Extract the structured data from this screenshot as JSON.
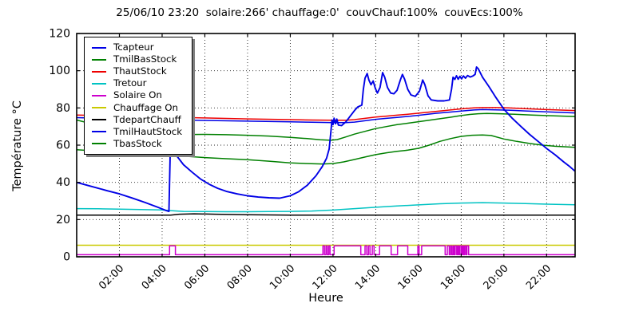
{
  "chart_data": {
    "type": "line",
    "title": "25/06/10 23:20  solaire:266' chauffage:0'  couvChauf:100%  couvEcs:100%",
    "xlabel": "Heure",
    "ylabel": "Température °C",
    "xlim_hours": [
      0,
      23.333
    ],
    "ylim": [
      0,
      120
    ],
    "ytick_values": [
      0,
      20,
      40,
      60,
      80,
      100,
      120
    ],
    "ytick_labels": [
      "0",
      "20",
      "40",
      "60",
      "80",
      "100",
      "120"
    ],
    "xtick_hours": [
      2,
      4,
      6,
      8,
      10,
      12,
      14,
      16,
      18,
      20,
      22
    ],
    "xtick_labels": [
      "02:00",
      "04:00",
      "06:00",
      "08:00",
      "10:00",
      "12:00",
      "14:00",
      "16:00",
      "18:00",
      "20:00",
      "22:00"
    ],
    "grid": true,
    "grid_style": "dotted",
    "legend_position": "upper-left",
    "series": [
      {
        "name": "Tcapteur",
        "color": "#0000e6",
        "points": [
          [
            0,
            40
          ],
          [
            0.7,
            37.8
          ],
          [
            1.4,
            35.6
          ],
          [
            2,
            33.8
          ],
          [
            2.6,
            31.6
          ],
          [
            3.2,
            29.2
          ],
          [
            3.8,
            26.6
          ],
          [
            4.2,
            24.8
          ],
          [
            4.32,
            24.4
          ],
          [
            4.38,
            56
          ],
          [
            4.45,
            54.5
          ],
          [
            4.55,
            58
          ],
          [
            4.7,
            54
          ],
          [
            5,
            49.5
          ],
          [
            5.4,
            45.5
          ],
          [
            5.8,
            41.8
          ],
          [
            6.2,
            39
          ],
          [
            6.6,
            36.8
          ],
          [
            7,
            35.2
          ],
          [
            7.5,
            33.8
          ],
          [
            8,
            32.8
          ],
          [
            8.5,
            32.1
          ],
          [
            9,
            31.7
          ],
          [
            9.5,
            31.5
          ],
          [
            10,
            32.8
          ],
          [
            10.4,
            35
          ],
          [
            10.8,
            38.5
          ],
          [
            11.2,
            43.5
          ],
          [
            11.5,
            48.5
          ],
          [
            11.7,
            53
          ],
          [
            11.82,
            58
          ],
          [
            11.9,
            67
          ],
          [
            11.95,
            73.5
          ],
          [
            12,
            71
          ],
          [
            12.05,
            74.5
          ],
          [
            12.12,
            71.5
          ],
          [
            12.18,
            74
          ],
          [
            12.25,
            70.8
          ],
          [
            12.4,
            70.5
          ],
          [
            12.6,
            72.5
          ],
          [
            12.8,
            75.5
          ],
          [
            13,
            78.5
          ],
          [
            13.15,
            80.5
          ],
          [
            13.35,
            81.5
          ],
          [
            13.42,
            90
          ],
          [
            13.5,
            96
          ],
          [
            13.6,
            98.5
          ],
          [
            13.68,
            95
          ],
          [
            13.78,
            92.5
          ],
          [
            13.88,
            94.5
          ],
          [
            13.98,
            90.5
          ],
          [
            14.08,
            88
          ],
          [
            14.2,
            91
          ],
          [
            14.32,
            99
          ],
          [
            14.42,
            96.5
          ],
          [
            14.55,
            91
          ],
          [
            14.7,
            88
          ],
          [
            14.85,
            87.6
          ],
          [
            15,
            89.5
          ],
          [
            15.15,
            95
          ],
          [
            15.25,
            98
          ],
          [
            15.35,
            95.5
          ],
          [
            15.5,
            90
          ],
          [
            15.65,
            87
          ],
          [
            15.85,
            86.2
          ],
          [
            16.05,
            89
          ],
          [
            16.2,
            95
          ],
          [
            16.3,
            92.5
          ],
          [
            16.45,
            86.5
          ],
          [
            16.6,
            84.3
          ],
          [
            16.9,
            83.8
          ],
          [
            17.2,
            83.8
          ],
          [
            17.45,
            84.3
          ],
          [
            17.55,
            90
          ],
          [
            17.62,
            96.5
          ],
          [
            17.7,
            95.3
          ],
          [
            17.78,
            97.3
          ],
          [
            17.86,
            95.4
          ],
          [
            17.94,
            97
          ],
          [
            18.02,
            95.6
          ],
          [
            18.1,
            97.2
          ],
          [
            18.2,
            96
          ],
          [
            18.3,
            97.4
          ],
          [
            18.42,
            96.6
          ],
          [
            18.55,
            97.2
          ],
          [
            18.65,
            98
          ],
          [
            18.72,
            102
          ],
          [
            18.8,
            101
          ],
          [
            19,
            96.5
          ],
          [
            19.3,
            91.5
          ],
          [
            19.6,
            86
          ],
          [
            20,
            79.3
          ],
          [
            20.4,
            74.3
          ],
          [
            20.8,
            70
          ],
          [
            21.2,
            65.8
          ],
          [
            21.6,
            62
          ],
          [
            22,
            58.2
          ],
          [
            22.4,
            54.8
          ],
          [
            22.8,
            51
          ],
          [
            23.1,
            48.3
          ],
          [
            23.33,
            46
          ]
        ]
      },
      {
        "name": "TmilBasStock",
        "color": "#008000",
        "points": [
          [
            0,
            73.5
          ],
          [
            0.6,
            71.8
          ],
          [
            1.2,
            70.2
          ],
          [
            1.8,
            68.6
          ],
          [
            2.4,
            67.2
          ],
          [
            3,
            65.8
          ],
          [
            3.5,
            65.3
          ],
          [
            4,
            65.4
          ],
          [
            5,
            65.7
          ],
          [
            6,
            65.8
          ],
          [
            7,
            65.6
          ],
          [
            8,
            65.3
          ],
          [
            9,
            64.9
          ],
          [
            10,
            64.2
          ],
          [
            10.8,
            63.5
          ],
          [
            11.4,
            62.9
          ],
          [
            11.9,
            62.6
          ],
          [
            12.2,
            63
          ],
          [
            12.6,
            64.4
          ],
          [
            13,
            65.9
          ],
          [
            13.5,
            67.4
          ],
          [
            14,
            68.9
          ],
          [
            14.5,
            70
          ],
          [
            15,
            71
          ],
          [
            15.5,
            71.8
          ],
          [
            16,
            72.6
          ],
          [
            16.5,
            73.4
          ],
          [
            17,
            74.2
          ],
          [
            17.5,
            75
          ],
          [
            18,
            75.9
          ],
          [
            18.4,
            76.5
          ],
          [
            18.8,
            76.9
          ],
          [
            19.2,
            77
          ],
          [
            19.8,
            76.9
          ],
          [
            20.5,
            76.6
          ],
          [
            21.3,
            76.2
          ],
          [
            22.2,
            75.8
          ],
          [
            23.33,
            75.4
          ]
        ]
      },
      {
        "name": "ThautStock",
        "color": "#ee0000",
        "points": [
          [
            0,
            76.2
          ],
          [
            2,
            75.6
          ],
          [
            4,
            75.1
          ],
          [
            6,
            74.6
          ],
          [
            8,
            74.1
          ],
          [
            10,
            73.7
          ],
          [
            11,
            73.5
          ],
          [
            12,
            73.4
          ],
          [
            12.6,
            73.4
          ],
          [
            13,
            73.7
          ],
          [
            13.5,
            74.4
          ],
          [
            14,
            75.1
          ],
          [
            14.5,
            75.6
          ],
          [
            15,
            76.1
          ],
          [
            15.6,
            76.7
          ],
          [
            16.2,
            77.4
          ],
          [
            16.8,
            78.1
          ],
          [
            17.4,
            78.8
          ],
          [
            18,
            79.5
          ],
          [
            18.6,
            80
          ],
          [
            19,
            80.2
          ],
          [
            19.6,
            80.2
          ],
          [
            20.2,
            80
          ],
          [
            21,
            79.6
          ],
          [
            22,
            79.1
          ],
          [
            23.33,
            78.6
          ]
        ]
      },
      {
        "name": "Tretour",
        "color": "#00c3c3",
        "points": [
          [
            0,
            25.9
          ],
          [
            1,
            25.8
          ],
          [
            2,
            25.6
          ],
          [
            3,
            25.4
          ],
          [
            4,
            25.2
          ],
          [
            4.4,
            24.8
          ],
          [
            5,
            24.4
          ],
          [
            6,
            24.3
          ],
          [
            7,
            24.2
          ],
          [
            8,
            24.2
          ],
          [
            9,
            24.3
          ],
          [
            10,
            24.4
          ],
          [
            11,
            24.6
          ],
          [
            12,
            25.1
          ],
          [
            13,
            25.9
          ],
          [
            14,
            26.6
          ],
          [
            15,
            27.3
          ],
          [
            16,
            27.9
          ],
          [
            17,
            28.5
          ],
          [
            18,
            28.9
          ],
          [
            19,
            29.1
          ],
          [
            20,
            28.9
          ],
          [
            21,
            28.6
          ],
          [
            22,
            28.3
          ],
          [
            23.33,
            28
          ]
        ]
      },
      {
        "name": "Solaire On",
        "color": "#cd00cd",
        "square_wave": {
          "baseline": 1.1,
          "on_value": 5.9,
          "on_intervals": [
            [
              4.35,
              4.62
            ],
            [
              11.53,
              11.6
            ],
            [
              11.67,
              11.73
            ],
            [
              11.8,
              11.86
            ],
            [
              12.05,
              13.3
            ],
            [
              13.5,
              13.58
            ],
            [
              13.66,
              13.73
            ],
            [
              13.84,
              13.92
            ],
            [
              14.18,
              14.72
            ],
            [
              15.02,
              15.5
            ],
            [
              15.97,
              16.03
            ],
            [
              16.15,
              17.25
            ],
            [
              17.35,
              17.44
            ],
            [
              17.5,
              17.56
            ],
            [
              17.62,
              17.67
            ],
            [
              17.72,
              17.79
            ],
            [
              17.84,
              17.89
            ],
            [
              17.94,
              18.01
            ],
            [
              18.06,
              18.11
            ],
            [
              18.16,
              18.22
            ],
            [
              18.27,
              18.35
            ]
          ]
        }
      },
      {
        "name": "Chauffage On",
        "color": "#c9c900",
        "points": [
          [
            0,
            6.2
          ],
          [
            23.33,
            6.2
          ]
        ]
      },
      {
        "name": "TdepartChauff",
        "color": "#000000",
        "points": [
          [
            0,
            22.4
          ],
          [
            4.4,
            22.4
          ],
          [
            4.8,
            22.9
          ],
          [
            5.5,
            23.1
          ],
          [
            6.5,
            22.9
          ],
          [
            8,
            22.6
          ],
          [
            10,
            22.4
          ],
          [
            14,
            22.4
          ],
          [
            18,
            22.4
          ],
          [
            23.33,
            22.4
          ]
        ]
      },
      {
        "name": "TmilHautStock",
        "color": "#0000e6",
        "points": [
          [
            0,
            74.8
          ],
          [
            2,
            74.2
          ],
          [
            4,
            73.7
          ],
          [
            6,
            73.3
          ],
          [
            8,
            72.9
          ],
          [
            10,
            72.5
          ],
          [
            11,
            72.3
          ],
          [
            12,
            72.1
          ],
          [
            12.6,
            72.1
          ],
          [
            13,
            72.4
          ],
          [
            13.5,
            73.1
          ],
          [
            14,
            73.9
          ],
          [
            14.5,
            74.4
          ],
          [
            15,
            74.9
          ],
          [
            15.6,
            75.5
          ],
          [
            16.2,
            76.3
          ],
          [
            16.8,
            77.1
          ],
          [
            17.4,
            77.7
          ],
          [
            18,
            78.3
          ],
          [
            18.6,
            78.9
          ],
          [
            19,
            79.1
          ],
          [
            19.6,
            79
          ],
          [
            20.2,
            78.8
          ],
          [
            21,
            78.4
          ],
          [
            22,
            77.9
          ],
          [
            23.33,
            77.3
          ]
        ]
      },
      {
        "name": "TbasStock",
        "color": "#008000",
        "points": [
          [
            0,
            57.5
          ],
          [
            1,
            56.8
          ],
          [
            2,
            56.1
          ],
          [
            3,
            55.5
          ],
          [
            4,
            55
          ],
          [
            5,
            54.1
          ],
          [
            6,
            53.3
          ],
          [
            7,
            52.7
          ],
          [
            8,
            52.2
          ],
          [
            9,
            51.4
          ],
          [
            10,
            50.5
          ],
          [
            10.8,
            50.1
          ],
          [
            11.5,
            49.9
          ],
          [
            12,
            50.1
          ],
          [
            12.5,
            51
          ],
          [
            13,
            52.3
          ],
          [
            13.5,
            53.6
          ],
          [
            14,
            54.9
          ],
          [
            14.5,
            55.9
          ],
          [
            15,
            56.7
          ],
          [
            15.5,
            57.3
          ],
          [
            16,
            58.3
          ],
          [
            16.5,
            60
          ],
          [
            17,
            62
          ],
          [
            17.5,
            63.5
          ],
          [
            18,
            64.7
          ],
          [
            18.5,
            65.3
          ],
          [
            19,
            65.5
          ],
          [
            19.4,
            65.2
          ],
          [
            20,
            63.3
          ],
          [
            20.6,
            62
          ],
          [
            21.2,
            60.9
          ],
          [
            21.8,
            60
          ],
          [
            22.4,
            59.4
          ],
          [
            23,
            59
          ],
          [
            23.33,
            58.8
          ]
        ]
      }
    ]
  },
  "legend": {
    "items": [
      "Tcapteur",
      "TmilBasStock",
      "ThautStock",
      "Tretour",
      "Solaire On",
      "Chauffage On",
      "TdepartChauff",
      "TmilHautStock",
      "TbasStock"
    ]
  }
}
